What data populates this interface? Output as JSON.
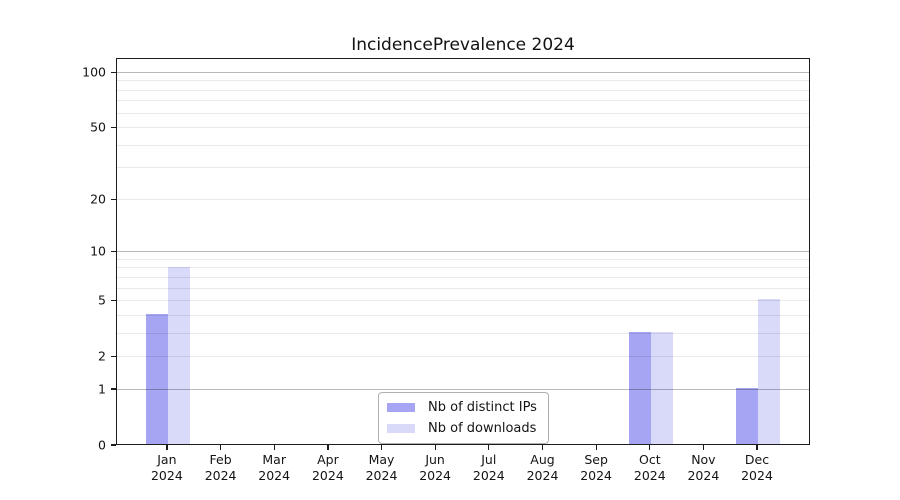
{
  "chart_data": {
    "type": "bar",
    "title": "IncidencePrevalence 2024",
    "categories": [
      {
        "month": "Jan",
        "year": "2024"
      },
      {
        "month": "Feb",
        "year": "2024"
      },
      {
        "month": "Mar",
        "year": "2024"
      },
      {
        "month": "Apr",
        "year": "2024"
      },
      {
        "month": "May",
        "year": "2024"
      },
      {
        "month": "Jun",
        "year": "2024"
      },
      {
        "month": "Jul",
        "year": "2024"
      },
      {
        "month": "Aug",
        "year": "2024"
      },
      {
        "month": "Sep",
        "year": "2024"
      },
      {
        "month": "Oct",
        "year": "2024"
      },
      {
        "month": "Nov",
        "year": "2024"
      },
      {
        "month": "Dec",
        "year": "2024"
      }
    ],
    "series": [
      {
        "name": "Nb of distinct IPs",
        "color": "#a5a5f3",
        "values": [
          4,
          0,
          0,
          0,
          0,
          0,
          0,
          0,
          0,
          3,
          0,
          1
        ]
      },
      {
        "name": "Nb of downloads",
        "color": "#d9d9f9",
        "values": [
          8,
          0,
          0,
          0,
          0,
          0,
          0,
          0,
          0,
          3,
          0,
          5
        ]
      }
    ],
    "xlabel": "",
    "ylabel": "",
    "yscale": "log1p",
    "ylim": [
      0,
      118
    ],
    "ytick_values": [
      100,
      50,
      20,
      10,
      5,
      2,
      1,
      0
    ],
    "minor_grid_values": [
      2,
      3,
      4,
      5,
      6,
      7,
      8,
      9,
      20,
      30,
      40,
      50,
      60,
      70,
      80,
      90
    ],
    "major_grid_values": [
      1,
      10,
      100
    ],
    "grid": "both",
    "legend_position": "lower center"
  }
}
